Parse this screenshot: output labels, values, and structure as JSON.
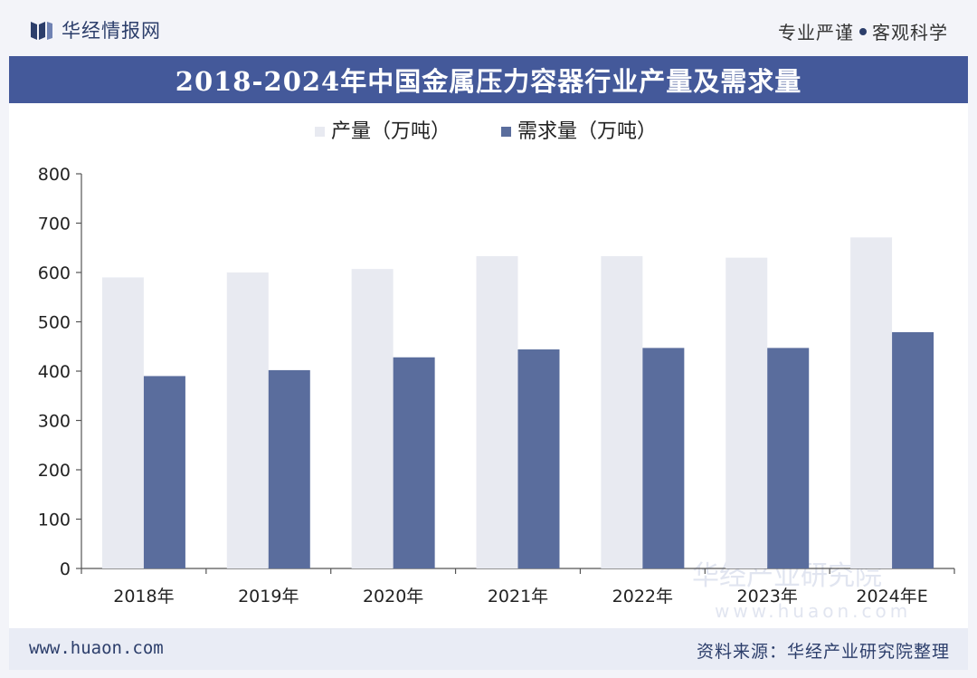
{
  "header": {
    "brand": "华经情报网",
    "slogan_left": "专业严谨",
    "slogan_right": "客观科学"
  },
  "watermarks": {
    "wm1": "华经产业研究院",
    "wm2": "www.huaon.com"
  },
  "footer": {
    "url": "www.huaon.com",
    "source": "资料来源：华经产业研究院整理"
  },
  "colors": {
    "production": "#e8eaf1",
    "demand": "#5a6d9d",
    "title_bar": "#44599a"
  },
  "chart_data": {
    "type": "bar",
    "title": "2018-2024年中国金属压力容器行业产量及需求量",
    "categories": [
      "2018年",
      "2019年",
      "2020年",
      "2021年",
      "2022年",
      "2023年",
      "2024年E"
    ],
    "series": [
      {
        "name": "产量（万吨）",
        "values": [
          590,
          600,
          607,
          633,
          633,
          630,
          671
        ]
      },
      {
        "name": "需求量（万吨）",
        "values": [
          390,
          402,
          428,
          444,
          447,
          447,
          479
        ]
      }
    ],
    "ylim": [
      0,
      800
    ],
    "yticks": [
      0,
      100,
      200,
      300,
      400,
      500,
      600,
      700,
      800
    ],
    "xlabel": "",
    "ylabel": "",
    "legend_position": "top-center",
    "grid": false
  }
}
